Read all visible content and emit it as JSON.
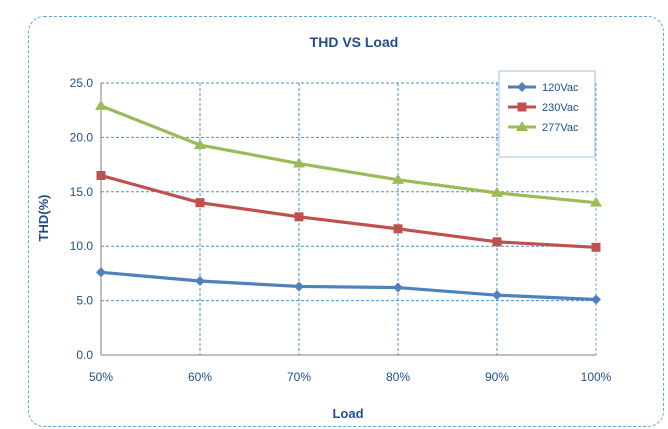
{
  "chart_data": {
    "type": "line",
    "title": "THD VS  Load",
    "xlabel": "Load",
    "ylabel": "THD(%)",
    "categories": [
      "50%",
      "60%",
      "70%",
      "80%",
      "90%",
      "100%"
    ],
    "ylim": [
      0,
      25
    ],
    "yticks": [
      "0.0",
      "5.0",
      "10.0",
      "15.0",
      "20.0",
      "25.0"
    ],
    "ytick_values": [
      0,
      5,
      10,
      15,
      20,
      25
    ],
    "grid": true,
    "legend_position": "top-right",
    "series": [
      {
        "name": "120Vac",
        "values": [
          7.6,
          6.8,
          6.3,
          6.2,
          5.5,
          5.1
        ],
        "color": "#4f81bd",
        "marker": "diamond"
      },
      {
        "name": "230Vac",
        "values": [
          16.5,
          14.0,
          12.7,
          11.6,
          10.4,
          9.9
        ],
        "color": "#c0504d",
        "marker": "square"
      },
      {
        "name": "277Vac",
        "values": [
          22.9,
          19.3,
          17.6,
          16.1,
          14.9,
          14.0
        ],
        "color": "#9bbb59",
        "marker": "triangle"
      }
    ]
  }
}
